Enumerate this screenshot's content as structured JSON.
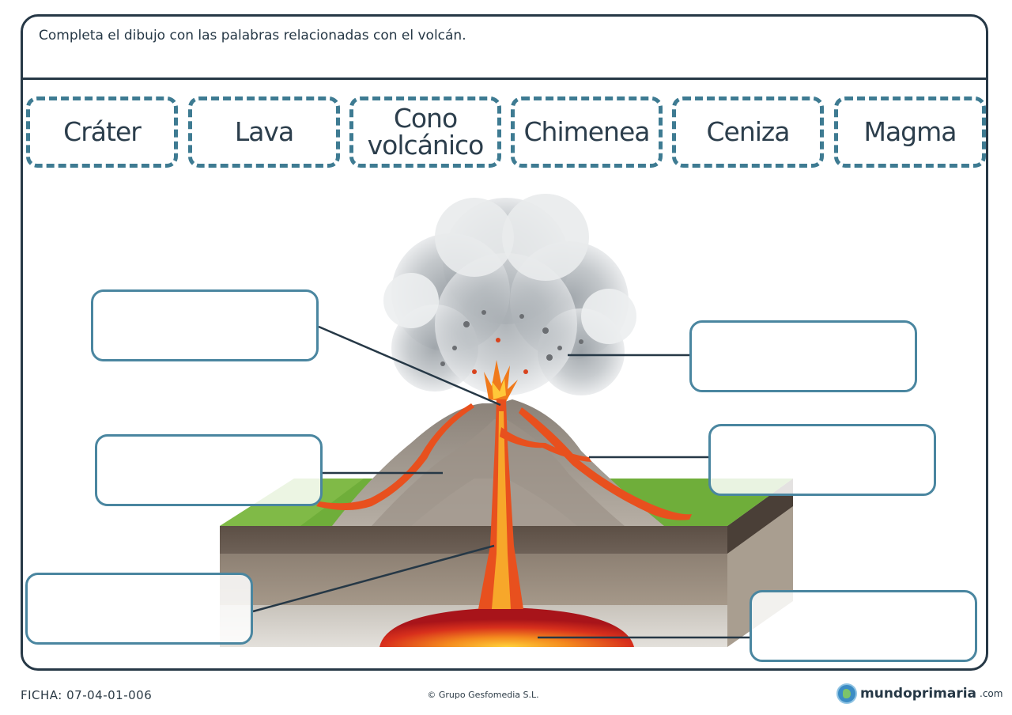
{
  "worksheet": {
    "instruction": "Completa el dibujo con las palabras relacionadas con el volcán.",
    "word_bank": [
      {
        "label": "Cráter"
      },
      {
        "label": "Lava"
      },
      {
        "label": "Cono volcánico"
      },
      {
        "label": "Chimenea"
      },
      {
        "label": "Ceniza"
      },
      {
        "label": "Magma"
      }
    ],
    "answer_boxes": [
      {
        "id": "left-top",
        "value": ""
      },
      {
        "id": "left-middle",
        "value": ""
      },
      {
        "id": "left-bottom",
        "value": ""
      },
      {
        "id": "right-top",
        "value": ""
      },
      {
        "id": "right-middle",
        "value": ""
      },
      {
        "id": "right-bottom",
        "value": ""
      }
    ]
  },
  "footer": {
    "code": "FICHA: 07-04-01-006",
    "copyright": "© Grupo Gesfomedia S.L.",
    "brand": "mundoprimaria",
    "brand_tld": ".com"
  },
  "colors": {
    "frame": "#263846",
    "dashed_border": "#3e7b92",
    "answer_border": "#4a86a0",
    "lava": "#e8501e",
    "magma": "#f2b21c",
    "grass": "#6fae3a"
  },
  "icons": [
    "globe-logo-icon"
  ]
}
